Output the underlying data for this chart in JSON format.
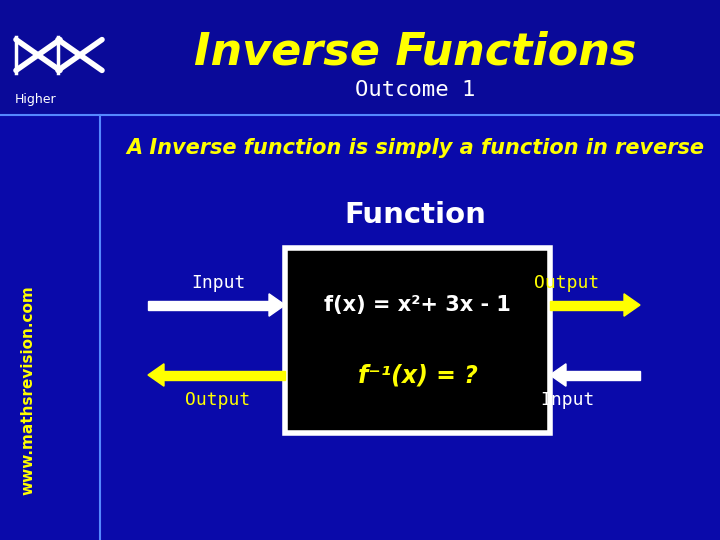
{
  "bg_color": "#0a0a99",
  "title": "Inverse Functions",
  "title_color": "#ffff00",
  "outcome_text": "Outcome 1",
  "outcome_color": "#ffffff",
  "higher_text": "Higher",
  "watermark": "www.mathsrevision.com",
  "main_text": "A Inverse function is simply a function in reverse",
  "main_text_color": "#ffff00",
  "function_label": "Function",
  "function_label_color": "#ffffff",
  "box_text_line1": "f(x) = x²+ 3x - 1",
  "box_text_line2": "f⁻¹(x) = ?",
  "box_bg": "#000000",
  "box_border": "#ffffff",
  "arrow_color_white": "#ffffff",
  "arrow_color_yellow": "#ffff00",
  "input_label": "Input",
  "output_label": "Output",
  "label_color": "#ffffff",
  "divider_color": "#5588ff",
  "bg_lower": "#0000aa"
}
